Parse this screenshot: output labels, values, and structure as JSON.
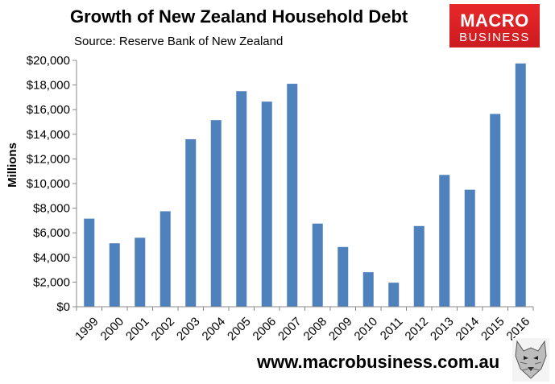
{
  "header": {
    "title": "Growth of New Zealand Household Debt",
    "source": "Source: Reserve Bank of New Zealand"
  },
  "logo": {
    "line1": "MACRO",
    "line2": "BUSINESS",
    "color": "#e0262a"
  },
  "footer": {
    "website": "www.macrobusiness.com.au",
    "mascot_icon": "wolf-icon"
  },
  "chart_data": {
    "type": "bar",
    "title": "Growth of New Zealand Household Debt",
    "ylabel": "Millions",
    "xlabel": "",
    "ylim": [
      0,
      20000
    ],
    "ytick_step": 2000,
    "grid": false,
    "legend": "none",
    "bar_color": "#4f81bd",
    "categories": [
      "1999",
      "2000",
      "2001",
      "2002",
      "2003",
      "2004",
      "2005",
      "2006",
      "2007",
      "2008",
      "2009",
      "2010",
      "2011",
      "2012",
      "2013",
      "2014",
      "2015",
      "2016"
    ],
    "values": [
      7150,
      5150,
      5600,
      7750,
      13600,
      15150,
      17500,
      16650,
      18100,
      6750,
      4850,
      2800,
      1950,
      6550,
      10700,
      9500,
      15650,
      19750
    ]
  }
}
